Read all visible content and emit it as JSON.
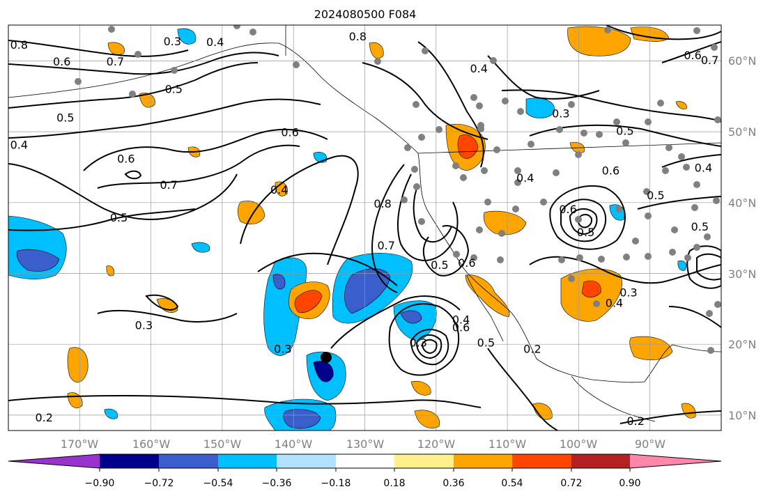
{
  "title": "2024080500 F084",
  "lat_labels": [
    {
      "text": "60°N",
      "lat": 60
    },
    {
      "text": "50°N",
      "lat": 50
    },
    {
      "text": "40°N",
      "lat": 40
    },
    {
      "text": "30°N",
      "lat": 30
    },
    {
      "text": "20°N",
      "lat": 20
    },
    {
      "text": "10°N",
      "lat": 10
    }
  ],
  "lon_labels": [
    {
      "text": "170°W",
      "lon": -170
    },
    {
      "text": "160°W",
      "lon": -160
    },
    {
      "text": "150°W",
      "lon": -150
    },
    {
      "text": "140°W",
      "lon": -140
    },
    {
      "text": "130°W",
      "lon": -130
    },
    {
      "text": "120°W",
      "lon": -120
    },
    {
      "text": "110°W",
      "lon": -110
    },
    {
      "text": "100°W",
      "lon": -100
    },
    {
      "text": "90°W",
      "lon": -90
    }
  ],
  "map_extent": {
    "lon_min": -180,
    "lon_max": -80,
    "lat_min": 8,
    "lat_max": 66
  },
  "colorbar": {
    "colors": [
      "#9932cc",
      "#00008b",
      "#3a5fcd",
      "#00bfff",
      "#b0e2ff",
      "#ffffff",
      "#fff08c",
      "#ffa500",
      "#ff4500",
      "#b22222",
      "#ff88aa"
    ],
    "tick_labels": [
      "−0.90",
      "−0.72",
      "−0.54",
      "−0.36",
      "−0.18",
      "0.18",
      "0.36",
      "0.54",
      "0.72",
      "0.90"
    ],
    "extend": "both"
  },
  "contour_labels": [
    {
      "text": "0.8",
      "lon": -178.5,
      "lat": 63.2
    },
    {
      "text": "0.6",
      "lon": -172.5,
      "lat": 60.8
    },
    {
      "text": "0.5",
      "lon": -172,
      "lat": 52.8
    },
    {
      "text": "0.4",
      "lon": -178.5,
      "lat": 48.9
    },
    {
      "text": "0.7",
      "lon": -165,
      "lat": 60.8
    },
    {
      "text": "0.3",
      "lon": -157,
      "lat": 63.7
    },
    {
      "text": "0.4",
      "lon": -151,
      "lat": 63.6
    },
    {
      "text": "0.5",
      "lon": -156.8,
      "lat": 56.9
    },
    {
      "text": "0.6",
      "lon": -140.5,
      "lat": 50.7
    },
    {
      "text": "0.6",
      "lon": -163.5,
      "lat": 46.9
    },
    {
      "text": "0.7",
      "lon": -157.5,
      "lat": 43.2
    },
    {
      "text": "0.4",
      "lon": -142,
      "lat": 42.5
    },
    {
      "text": "0.5",
      "lon": -164.5,
      "lat": 38.5
    },
    {
      "text": "0.3",
      "lon": -161,
      "lat": 23.1
    },
    {
      "text": "0.3",
      "lon": -141.5,
      "lat": 19.7
    },
    {
      "text": "0.2",
      "lon": -175,
      "lat": 9.9
    },
    {
      "text": "0.8",
      "lon": -131,
      "lat": 64.4
    },
    {
      "text": "0.4",
      "lon": -114,
      "lat": 59.8
    },
    {
      "text": "0.8",
      "lon": -127.5,
      "lat": 40.5
    },
    {
      "text": "0.7",
      "lon": -127,
      "lat": 34.5
    },
    {
      "text": "0.5",
      "lon": -119.5,
      "lat": 31.7
    },
    {
      "text": "0.6",
      "lon": -115.7,
      "lat": 32
    },
    {
      "text": "0.4",
      "lon": -116.5,
      "lat": 23.9
    },
    {
      "text": "0.6",
      "lon": -116.5,
      "lat": 22.8
    },
    {
      "text": "0.5",
      "lon": -113,
      "lat": 20.6
    },
    {
      "text": "0.3",
      "lon": -122.5,
      "lat": 20.6
    },
    {
      "text": "0.2",
      "lon": -106.5,
      "lat": 19.7
    },
    {
      "text": "0.3",
      "lon": -102.5,
      "lat": 53.4
    },
    {
      "text": "0.5",
      "lon": -93.5,
      "lat": 50.9
    },
    {
      "text": "0.6",
      "lon": -95.5,
      "lat": 45.2
    },
    {
      "text": "0.4",
      "lon": -107.5,
      "lat": 44.2
    },
    {
      "text": "0.6",
      "lon": -101.5,
      "lat": 39.7
    },
    {
      "text": "0.5",
      "lon": -99,
      "lat": 36.4
    },
    {
      "text": "0.3",
      "lon": -93,
      "lat": 27.8
    },
    {
      "text": "0.4",
      "lon": -95,
      "lat": 26.3
    },
    {
      "text": "0.5",
      "lon": -89.2,
      "lat": 41.7
    },
    {
      "text": "0.4",
      "lon": -82.5,
      "lat": 45.6
    },
    {
      "text": "0.5",
      "lon": -83,
      "lat": 37.2
    },
    {
      "text": "0.6",
      "lon": -84,
      "lat": 61.7
    },
    {
      "text": "0.7",
      "lon": -81.6,
      "lat": 61
    },
    {
      "text": "0.2",
      "lon": -92,
      "lat": 9.4
    }
  ]
}
